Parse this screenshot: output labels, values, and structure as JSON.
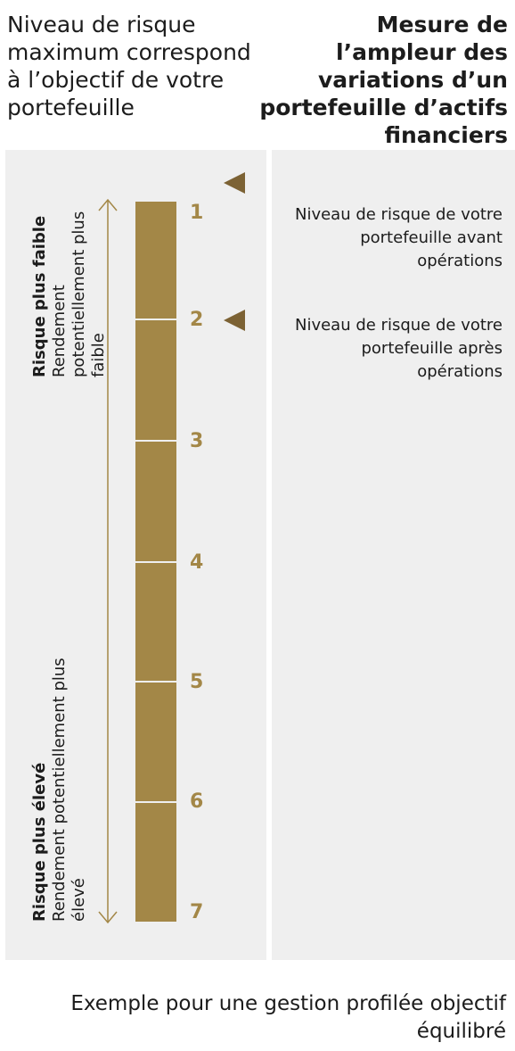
{
  "header": {
    "left": "Niveau de risque maximum correspond à l’objectif de votre portefeuille",
    "right": "Mesure de l’ampleur des variations d’un portefeuille d’actifs financiers"
  },
  "scale": {
    "levels": [
      "1",
      "2",
      "3",
      "4",
      "5",
      "6",
      "7"
    ],
    "bar_color": "#a38747",
    "marker_color": "#7c6234",
    "low": {
      "title": "Risque plus faible",
      "subtitle": "Rendement potentiellement plus faible"
    },
    "high": {
      "title": "Risque plus élevé",
      "subtitle": "Rendement potentiellement plus élevé"
    }
  },
  "markers": {
    "before": {
      "level": 1,
      "label": "Niveau de risque de votre portefeuille avant opérations"
    },
    "after": {
      "level": 2,
      "label": "Niveau de risque de votre portefeuille après opérations"
    }
  },
  "footer": "Exemple pour  une gestion profilée objectif équilibré",
  "icons": [
    "double-arrow-icon",
    "triangle-marker-icon"
  ]
}
